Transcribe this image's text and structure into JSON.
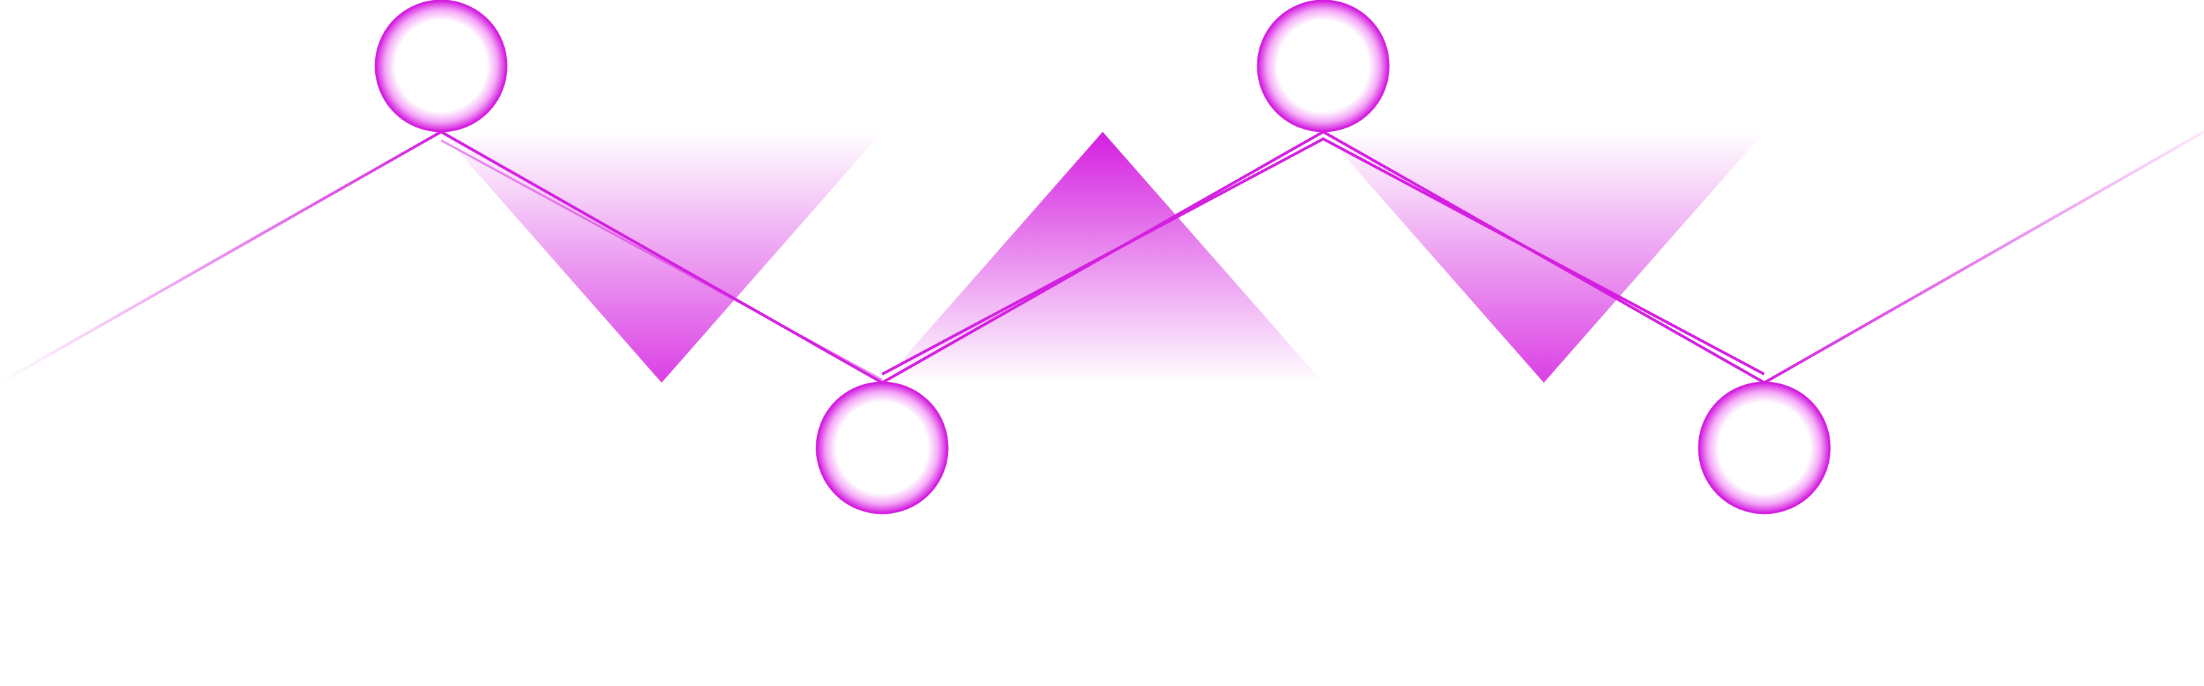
{
  "diagram": {
    "type": "zigzag-timeline",
    "node_count": 4,
    "nodes": [
      {
        "id": "node-1",
        "position": "top"
      },
      {
        "id": "node-2",
        "position": "bottom"
      },
      {
        "id": "node-3",
        "position": "top"
      },
      {
        "id": "node-4",
        "position": "bottom"
      }
    ],
    "colors": {
      "accent": "#d41ee0",
      "accent_light": "#f3b4f5",
      "background": "#ffffff"
    }
  }
}
